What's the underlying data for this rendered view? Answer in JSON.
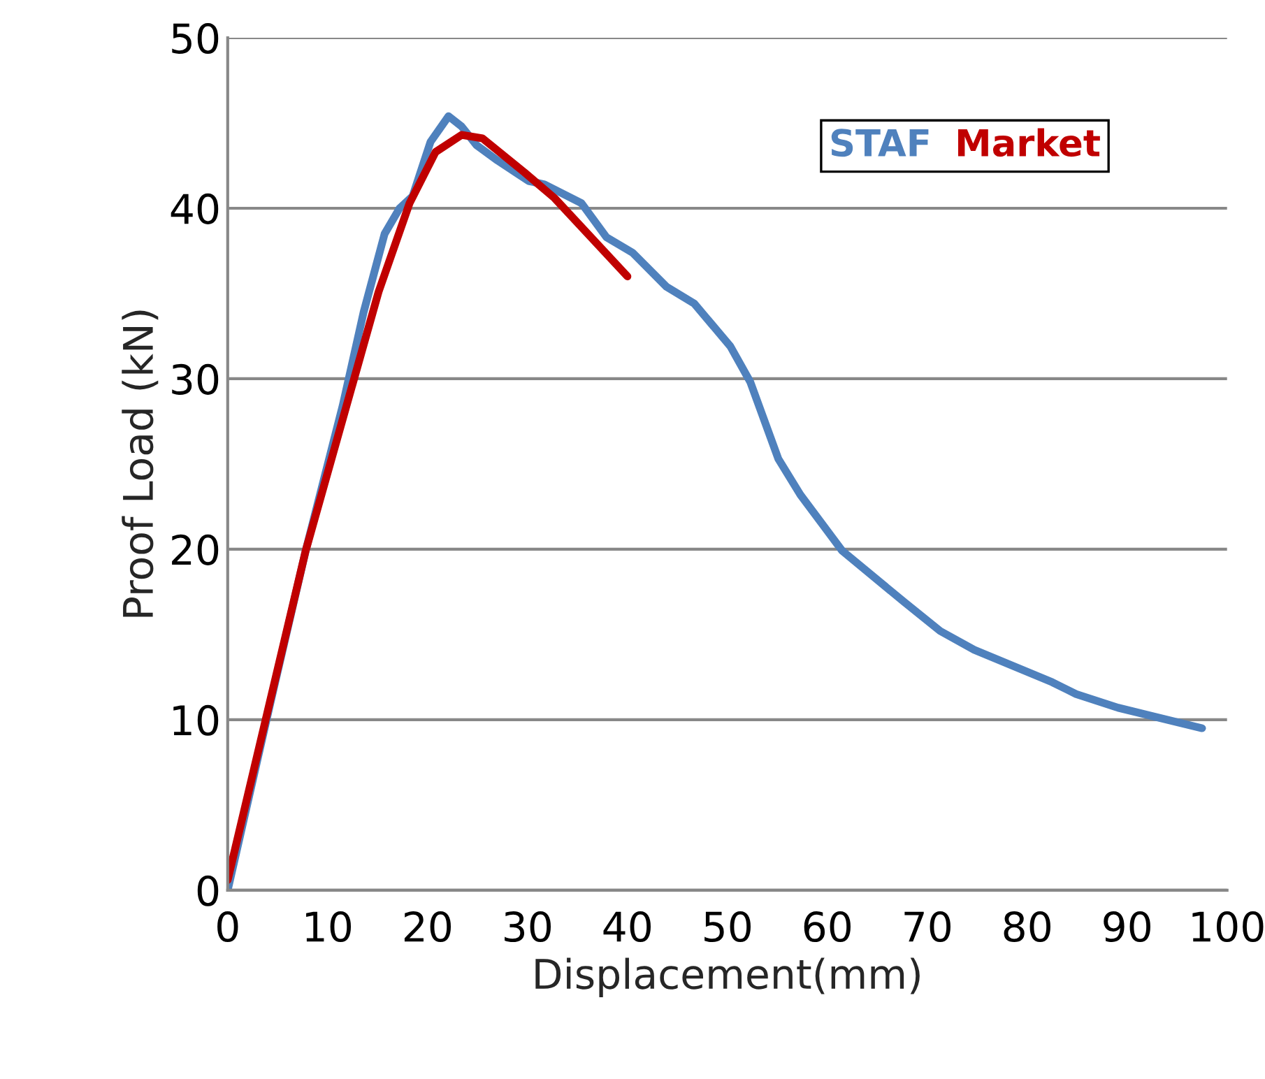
{
  "chart_data": {
    "type": "line",
    "xlabel": "Displacement(mm)",
    "ylabel": "Proof Load (kN)",
    "xlim": [
      0,
      100
    ],
    "xticks": [
      0,
      10,
      20,
      30,
      40,
      50,
      60,
      70,
      80,
      90,
      100
    ],
    "ylim": [
      0,
      50
    ],
    "yticks": [
      0,
      10,
      20,
      30,
      40,
      50
    ],
    "grid": "y",
    "legend": "top right",
    "marker": "none",
    "line_style": "solid",
    "series": [
      {
        "name": "STAF",
        "color": "#4f81bd",
        "x": [
          0,
          4.2,
          7.8,
          11.5,
          13.6,
          15.7,
          17.2,
          18.5,
          20.3,
          22.1,
          23.4,
          24.9,
          27.0,
          30.1,
          31.7,
          35.4,
          37.9,
          40.5,
          43.9,
          46.7,
          50.3,
          52.3,
          55.1,
          57.3,
          61.5,
          67.7,
          71.3,
          74.7,
          82.5,
          84.9,
          89.1,
          97.5
        ],
        "values": [
          0,
          10.8,
          19.9,
          28.4,
          33.9,
          38.5,
          40.0,
          40.7,
          43.9,
          45.4,
          44.8,
          43.7,
          42.8,
          41.6,
          41.4,
          40.3,
          38.3,
          37.4,
          35.4,
          34.4,
          31.9,
          29.8,
          25.3,
          23.2,
          19.9,
          16.9,
          15.2,
          14.1,
          12.2,
          11.5,
          10.7,
          9.5
        ]
      },
      {
        "name": "Market",
        "color": "#c00000",
        "x": [
          0,
          7.8,
          12.6,
          15.1,
          18.2,
          20.8,
          23.4,
          25.5,
          29.7,
          32.7,
          40.0
        ],
        "values": [
          0.6,
          19.9,
          29.9,
          35.1,
          40.3,
          43.3,
          44.3,
          44.1,
          42.1,
          40.6,
          36.0
        ]
      }
    ]
  }
}
